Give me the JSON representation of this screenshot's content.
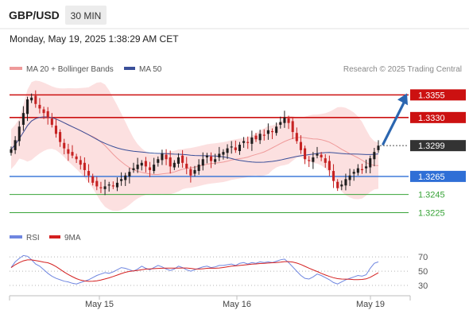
{
  "header": {
    "symbol": "GBP/USD",
    "timeframe": "30 MIN",
    "datetime": "Monday, May 19, 2025 1:38:29 AM CET"
  },
  "legend": {
    "bb_label": "MA 20 + Bollinger Bands",
    "ma50_label": "MA 50",
    "credit": "Research © 2025 Trading Central"
  },
  "rsi_legend": {
    "rsi_label": "RSI",
    "ma_label": "9MA"
  },
  "colors": {
    "resistance": "#cc1111",
    "support": "#2f6fd6",
    "target": "#37a337",
    "arrow": "#2b66b0",
    "candle_up": "#1e1e1e",
    "candle_down": "#c62222",
    "bollinger_fill": "#fbd6d6",
    "ma20": "#ef9a9a",
    "ma50": "#3a4f99",
    "rsi": "#6f86e0",
    "rsi_ma": "#d42020",
    "current_bg": "#333333"
  },
  "chart_data": [
    {
      "type": "candlestick",
      "title": "GBP/USD",
      "x_axis_labels": [
        "May 15",
        "May 16",
        "May 19"
      ],
      "ylim": [
        1.3214,
        1.3372
      ],
      "current_price": 1.3299,
      "levels": [
        {
          "value": 1.3355,
          "label": "1.3355",
          "kind": "resistance",
          "style": "boxed"
        },
        {
          "value": 1.333,
          "label": "1.3330",
          "kind": "resistance",
          "style": "boxed"
        },
        {
          "value": 1.3299,
          "label": "1.3299",
          "kind": "current",
          "style": "boxed-dark"
        },
        {
          "value": 1.3265,
          "label": "1.3265",
          "kind": "pivot",
          "style": "boxed-blue"
        },
        {
          "value": 1.3245,
          "label": "1.3245",
          "kind": "support",
          "style": "text"
        },
        {
          "value": 1.3225,
          "label": "1.3225",
          "kind": "support",
          "style": "text"
        }
      ],
      "close": [
        1.3295,
        1.3305,
        1.332,
        1.3335,
        1.335,
        1.3352,
        1.3345,
        1.334,
        1.3335,
        1.333,
        1.3322,
        1.3312,
        1.3303,
        1.3296,
        1.329,
        1.3288,
        1.3284,
        1.3278,
        1.3272,
        1.3266,
        1.3258,
        1.3254,
        1.3252,
        1.3254,
        1.3256,
        1.3254,
        1.3258,
        1.3262,
        1.3266,
        1.327,
        1.3274,
        1.3278,
        1.328,
        1.3276,
        1.3272,
        1.3278,
        1.3284,
        1.329,
        1.3284,
        1.3276,
        1.328,
        1.3286,
        1.328,
        1.3274,
        1.3266,
        1.3272,
        1.3278,
        1.3284,
        1.3288,
        1.3282,
        1.3284,
        1.329,
        1.3292,
        1.3296,
        1.3298,
        1.3294,
        1.33,
        1.3304,
        1.3302,
        1.3308,
        1.3306,
        1.3312,
        1.331,
        1.3316,
        1.3314,
        1.332,
        1.3325,
        1.333,
        1.3324,
        1.3314,
        1.3304,
        1.3294,
        1.3284,
        1.3282,
        1.3286,
        1.329,
        1.3286,
        1.328,
        1.3272,
        1.326,
        1.3252,
        1.3256,
        1.3262,
        1.3266,
        1.327,
        1.3274,
        1.3272,
        1.3276,
        1.3285,
        1.3292,
        1.3299
      ],
      "series": [
        {
          "name": "MA 20 + Bollinger Bands",
          "kind": "bollinger",
          "period": 20
        },
        {
          "name": "MA 50",
          "kind": "ma",
          "period": 50
        }
      ]
    },
    {
      "type": "line",
      "title": "",
      "x_axis_labels": [
        "May 15",
        "May 16",
        "May 19"
      ],
      "ylim": [
        20,
        78
      ],
      "y_ticks": [
        30,
        50,
        70
      ],
      "series": [
        {
          "name": "RSI",
          "values": [
            55,
            63,
            68,
            72,
            71,
            66,
            60,
            57,
            52,
            47,
            43,
            40,
            38,
            36,
            35,
            33,
            32,
            34,
            36,
            38,
            41,
            44,
            46,
            48,
            47,
            49,
            52,
            55,
            54,
            52,
            50,
            53,
            57,
            54,
            52,
            55,
            58,
            56,
            53,
            51,
            53,
            57,
            55,
            52,
            50,
            52,
            54,
            56,
            57,
            55,
            56,
            58,
            58,
            59,
            60,
            58,
            61,
            62,
            60,
            62,
            61,
            63,
            62,
            63,
            62,
            64,
            66,
            67,
            62,
            56,
            50,
            44,
            40,
            39,
            42,
            46,
            44,
            41,
            38,
            34,
            32,
            35,
            38,
            40,
            42,
            44,
            43,
            45,
            54,
            61,
            63
          ]
        },
        {
          "name": "9MA",
          "period": 9
        }
      ]
    }
  ]
}
